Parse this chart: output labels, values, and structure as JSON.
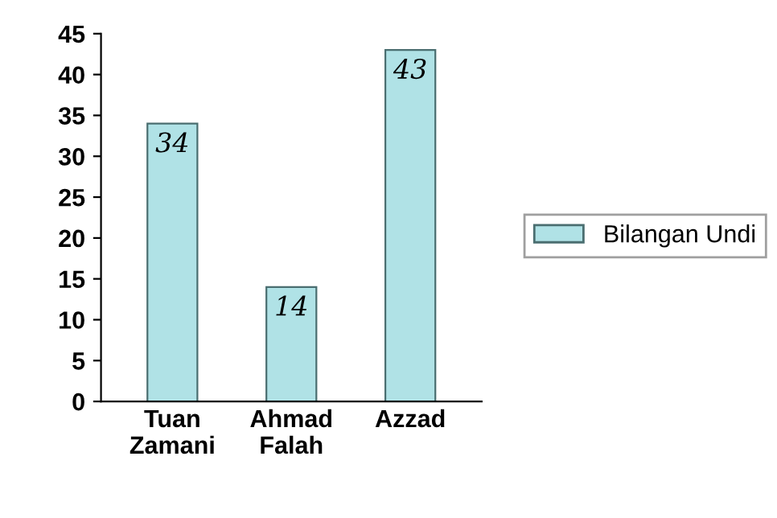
{
  "chart_data": {
    "type": "bar",
    "categories": [
      "Tuan\nZamani",
      "Ahmad\nFalah",
      "Azzad"
    ],
    "series": [
      {
        "name": "Bilangan Undi",
        "color": "#b0e2e6",
        "values": [
          34,
          14,
          43
        ]
      }
    ],
    "ylim": [
      0,
      45
    ],
    "yticks": [
      0,
      5,
      10,
      15,
      20,
      25,
      30,
      35,
      40,
      45
    ],
    "data_labels": true,
    "grid": false,
    "legend": "right"
  }
}
